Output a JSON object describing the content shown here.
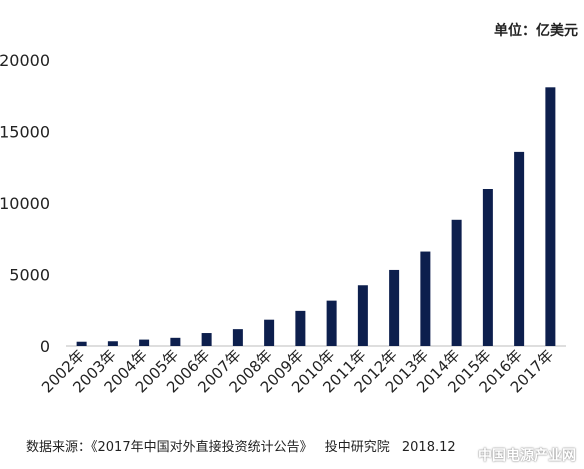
{
  "chart_data": {
    "type": "bar",
    "unit_label": "单位：亿美元",
    "categories": [
      "2002年",
      "2003年",
      "2004年",
      "2005年",
      "2006年",
      "2007年",
      "2008年",
      "2009年",
      "2010年",
      "2011年",
      "2012年",
      "2013年",
      "2014年",
      "2015年",
      "2016年",
      "2017年"
    ],
    "values": [
      299,
      332,
      448,
      572,
      906,
      1179,
      1840,
      2457,
      3172,
      4248,
      5319,
      6605,
      8826,
      10979,
      13574,
      18090
    ],
    "y_ticks": [
      "0",
      "5000",
      "10000",
      "15000",
      "20000"
    ],
    "ylim": [
      0,
      20000
    ],
    "bar_color": "#0d1f4d",
    "grid": false,
    "legend": "none"
  },
  "footer": {
    "source": "数据来源：《2017年中国对外直接投资统计公告》",
    "publisher": "投中研究院",
    "date": "2018.12"
  },
  "watermark": "中国电源产业网"
}
